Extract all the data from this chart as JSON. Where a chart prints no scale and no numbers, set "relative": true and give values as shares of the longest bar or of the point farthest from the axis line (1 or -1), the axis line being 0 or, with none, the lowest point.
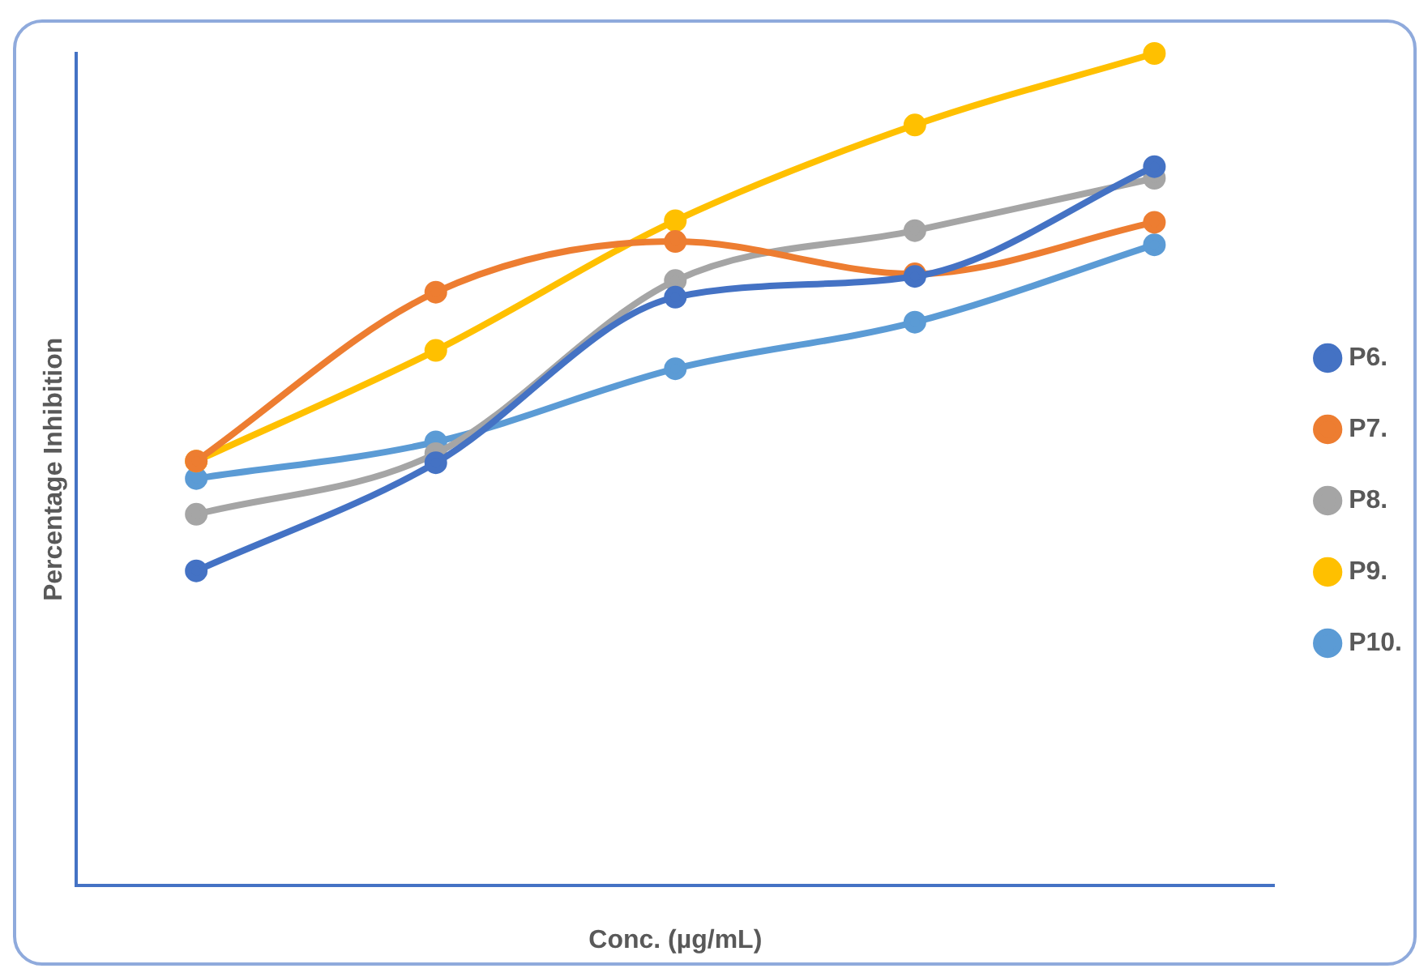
{
  "chart_data": {
    "type": "line",
    "relative": true,
    "xlabel": "Conc. (µg/mL)",
    "ylabel": "Percentage Inhibition",
    "categories": [
      null,
      null,
      null,
      null,
      null
    ],
    "legend": "right",
    "marker": "circle",
    "line_style": "solid",
    "series": [
      {
        "name": "P6.",
        "color": "#4472c4",
        "values": [
          0.378,
          0.508,
          0.707,
          0.732,
          0.864
        ]
      },
      {
        "name": "P7.",
        "color": "#ed7d31",
        "values": [
          0.51,
          0.713,
          0.774,
          0.735,
          0.797
        ]
      },
      {
        "name": "P8.",
        "color": "#a5a5a5",
        "values": [
          0.446,
          0.519,
          0.727,
          0.787,
          0.85
        ]
      },
      {
        "name": "P9.",
        "color": "#ffc000",
        "values": [
          0.51,
          0.643,
          0.799,
          0.914,
          1
        ]
      },
      {
        "name": "P10.",
        "color": "#5b9bd5",
        "values": [
          0.489,
          0.533,
          0.621,
          0.677,
          0.77
        ]
      }
    ]
  }
}
